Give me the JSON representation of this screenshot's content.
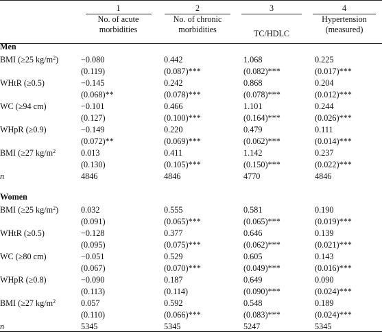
{
  "headers": {
    "numbers": [
      "1",
      "2",
      "3",
      "4"
    ],
    "col1": [
      "No. of acute",
      "morbidities"
    ],
    "col2": [
      "No. of chronic",
      "morbidities"
    ],
    "col3": [
      "TC/HDLC"
    ],
    "col4": [
      "Hypertension",
      "(measured)"
    ]
  },
  "sections": [
    {
      "title": "Men",
      "rows": [
        {
          "label": "BMI (≥25 kg/m",
          "sup": "2",
          "label_end": ")",
          "coef": [
            "−0.080",
            "0.442",
            "1.068",
            "0.225"
          ],
          "se": [
            "(0.119)",
            "(0.087)***",
            "(0.082)***",
            "(0.017)***"
          ]
        },
        {
          "label": "WHtR (≥0.5)",
          "sup": "",
          "label_end": "",
          "coef": [
            "−0.145",
            "0.242",
            "0.868",
            "0.204"
          ],
          "se": [
            "(0.068)**",
            "(0.078)***",
            "(0.078)***",
            "(0.012)***"
          ]
        },
        {
          "label": "WC (≥94 cm)",
          "sup": "",
          "label_end": "",
          "coef": [
            "−0.101",
            "0.466",
            "1.101",
            "0.244"
          ],
          "se": [
            "(0.127)",
            "(0.100)***",
            "(0.164)***",
            "(0.026)***"
          ]
        },
        {
          "label": "WHpR (≥0.9)",
          "sup": "",
          "label_end": "",
          "coef": [
            "−0.149",
            "0.220",
            "0.479",
            "0.111"
          ],
          "se": [
            "(0.072)**",
            "(0.069)***",
            "(0.062)***",
            "(0.014)***"
          ]
        },
        {
          "label": "BMI (≥27 kg/m",
          "sup": "2",
          "label_end": "",
          "coef": [
            "0.013",
            "0.411",
            "1.142",
            "0.237"
          ],
          "se": [
            "(0.130)",
            "(0.105)***",
            "(0.150)***",
            "(0.022)***"
          ]
        }
      ],
      "n_label": "n",
      "n": [
        "4846",
        "4846",
        "4770",
        "4846"
      ]
    },
    {
      "title": "Women",
      "rows": [
        {
          "label": "BMI (≥25 kg/m",
          "sup": "2",
          "label_end": ")",
          "coef": [
            "0.032",
            "0.555",
            "0.581",
            "0.190"
          ],
          "se": [
            "(0.091)",
            "(0.065)***",
            "(0.065)***",
            "(0.019)***"
          ]
        },
        {
          "label": "WHtR (≥0.5)",
          "sup": "",
          "label_end": "",
          "coef": [
            "−0.128",
            "0.377",
            "0.646",
            "0.139"
          ],
          "se": [
            "(0.095)",
            "(0.075)***",
            "(0.062)***",
            "(0.021)***"
          ]
        },
        {
          "label": "WC (≥80 cm)",
          "sup": "",
          "label_end": "",
          "coef": [
            "−0.051",
            "0.529",
            "0.605",
            "0.143"
          ],
          "se": [
            "(0.067)",
            "(0.070)***",
            "(0.049)***",
            "(0.016)***"
          ]
        },
        {
          "label": "WHpR (≥0.8)",
          "sup": "",
          "label_end": "",
          "coef": [
            "−0.090",
            "0.187",
            "0.649",
            "0.090"
          ],
          "se": [
            "(0.113)",
            "(0.114)",
            "(0.090)***",
            "(0.024)***"
          ]
        },
        {
          "label": "BMI (≥27 kg/m",
          "sup": "2",
          "label_end": "",
          "coef": [
            "0.057",
            "0.592",
            "0.548",
            "0.189"
          ],
          "se": [
            "(0.110)",
            "(0.066)***",
            "(0.083)***",
            "(0.024)***"
          ]
        }
      ],
      "n_label": "n",
      "n": [
        "5345",
        "5345",
        "5247",
        "5345"
      ]
    }
  ]
}
